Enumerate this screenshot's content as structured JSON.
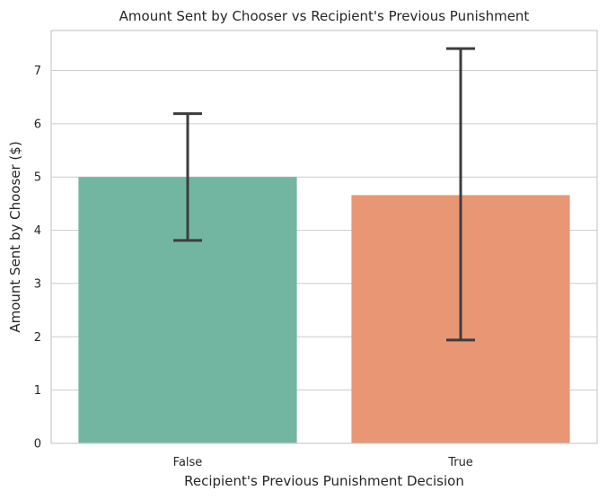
{
  "chart_data": {
    "type": "bar",
    "title": "Amount Sent by Chooser vs Recipient's Previous Punishment",
    "xlabel": "Recipient's Previous Punishment Decision",
    "ylabel": "Amount Sent by Chooser ($)",
    "categories": [
      "False",
      "True"
    ],
    "values": [
      5.0,
      4.66
    ],
    "error_low": [
      3.81,
      1.94
    ],
    "error_high": [
      6.19,
      7.41
    ],
    "colors": [
      "#72b6a1",
      "#e99675"
    ],
    "ylim": [
      0,
      7.75
    ],
    "yticks": [
      "0",
      "1",
      "2",
      "3",
      "4",
      "5",
      "6",
      "7"
    ],
    "grid": "horizontal",
    "legend": "none"
  }
}
